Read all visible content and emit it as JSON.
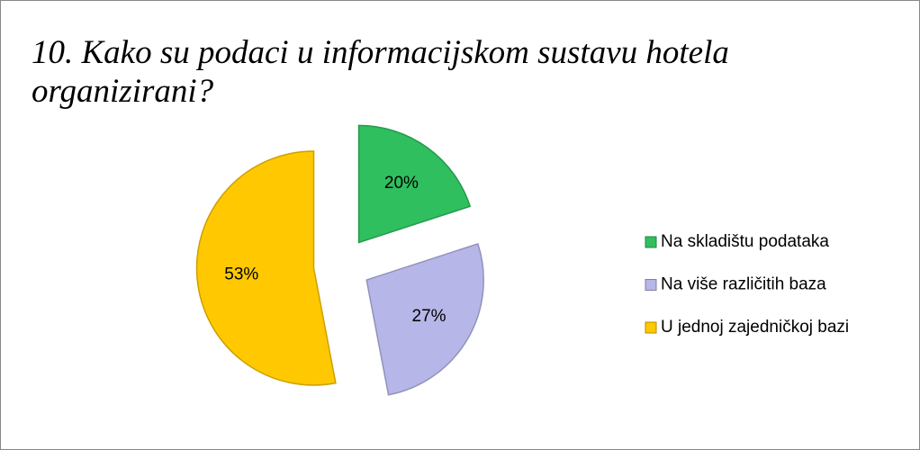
{
  "chart_data": {
    "type": "pie",
    "title": "10. Kako su podaci u informacijskom sustavu hotela organizirani?",
    "categories": [
      "Na skladištu podataka",
      "Na više različitih baza",
      "U jednoj zajedničkoj bazi"
    ],
    "values": [
      20,
      27,
      53
    ],
    "value_labels": [
      "20%",
      "27%",
      "53%"
    ],
    "colors": [
      "#2fbf5f",
      "#b6b6e8",
      "#ffc800"
    ],
    "legend": "right"
  }
}
